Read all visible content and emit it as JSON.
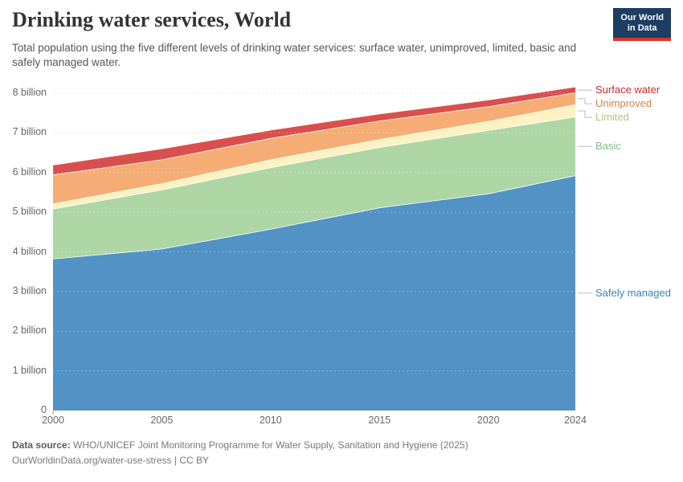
{
  "header": {
    "title": "Drinking water services, World",
    "subtitle": "Total population using the five different levels of drinking water services: surface water, unimproved, limited, basic and safely managed water."
  },
  "logo": {
    "line1": "Our World",
    "line2": "in Data"
  },
  "footer": {
    "source_label": "Data source:",
    "source_text": " WHO/UNICEF Joint Monitoring Programme for Water Supply, Sanitation and Hygiene (2025)",
    "url": "OurWorldinData.org/water-use-stress",
    "separator": " | ",
    "license": "CC BY"
  },
  "colors": {
    "background": "#ffffff",
    "logo_bg": "#1d3d63",
    "logo_accent": "#d8352a",
    "grid": "#dcdcdc",
    "axis_text": "#666666",
    "connector": "#bbbbbb"
  },
  "chart_data": {
    "type": "area",
    "stacked": true,
    "title": "Drinking water services, World",
    "xlabel": "",
    "ylabel": "",
    "x": [
      2000,
      2005,
      2010,
      2015,
      2020,
      2024
    ],
    "series": [
      {
        "name": "Safely managed",
        "color": "#5292c5",
        "label_color": "#3880b9",
        "values": [
          3.82,
          4.07,
          4.57,
          5.11,
          5.46,
          5.92
        ]
      },
      {
        "name": "Basic",
        "color": "#aed6a5",
        "label_color": "#83bf80",
        "values": [
          1.26,
          1.49,
          1.55,
          1.52,
          1.6,
          1.48
        ]
      },
      {
        "name": "Limited",
        "color": "#fcf2c2",
        "label_color": "#bcbd7d",
        "values": [
          0.13,
          0.16,
          0.2,
          0.2,
          0.23,
          0.31
        ]
      },
      {
        "name": "Unimproved",
        "color": "#f5ad75",
        "label_color": "#ce8548",
        "values": [
          0.73,
          0.6,
          0.54,
          0.47,
          0.37,
          0.3
        ]
      },
      {
        "name": "Surface water",
        "color": "#d94f4d",
        "label_color": "#cd2a28",
        "values": [
          0.24,
          0.27,
          0.2,
          0.17,
          0.16,
          0.14
        ]
      }
    ],
    "totals": [
      6.18,
      6.59,
      7.06,
      7.47,
      7.82,
      8.15
    ],
    "xlim": [
      2000,
      2024
    ],
    "ylim": [
      0,
      8.3
    ],
    "unit": "billion people",
    "xtick_values": [
      2000,
      2005,
      2010,
      2015,
      2020,
      2024
    ],
    "xtick_labels": [
      "2000",
      "2005",
      "2010",
      "2015",
      "2020",
      "2024"
    ],
    "ytick_values": [
      0,
      1,
      2,
      3,
      4,
      5,
      6,
      7,
      8
    ],
    "ytick_labels": [
      "0",
      "1 billion",
      "2 billion",
      "3 billion",
      "4 billion",
      "5 billion",
      "6 billion",
      "7 billion",
      "8 billion"
    ],
    "grid": true,
    "legend_position": "right"
  }
}
